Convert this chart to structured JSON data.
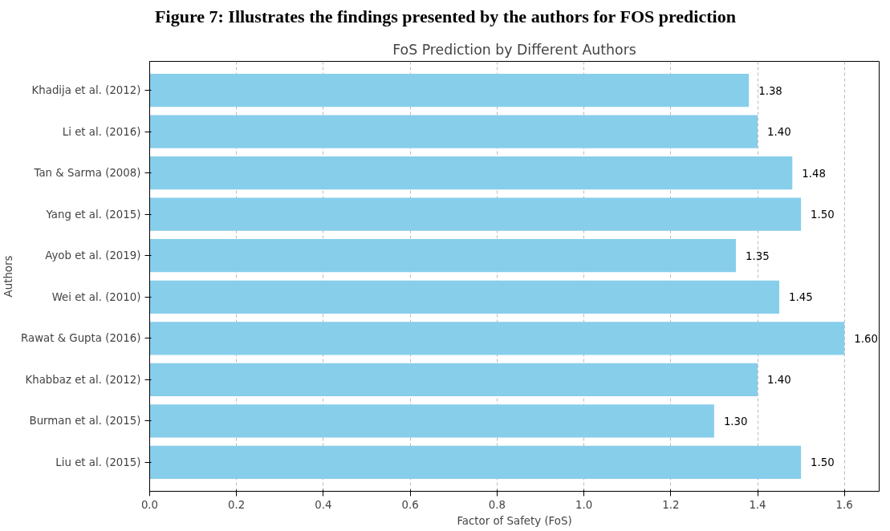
{
  "chart_data": {
    "type": "bar",
    "orientation": "horizontal",
    "title": "FoS Prediction by Different Authors",
    "annotations": [
      "Figure 7: Illustrates the findings presented by the authors for FOS prediction"
    ],
    "xlabel": "Factor of Safety (FoS)",
    "ylabel": "Authors",
    "categories": [
      "Khadija et al. (2012)",
      "Li et al. (2016)",
      "Tan & Sarma (2008)",
      "Yang et al. (2015)",
      "Ayob et al. (2019)",
      "Wei et al. (2010)",
      "Rawat & Gupta (2016)",
      "Khabbaz et al. (2012)",
      "Burman et al. (2015)",
      "Liu et al. (2015)"
    ],
    "values": [
      1.38,
      1.4,
      1.48,
      1.5,
      1.35,
      1.45,
      1.6,
      1.4,
      1.3,
      1.5
    ],
    "value_labels": [
      "1.38",
      "1.40",
      "1.48",
      "1.50",
      "1.35",
      "1.45",
      "1.60",
      "1.40",
      "1.30",
      "1.50"
    ],
    "color": "#87ceeb",
    "xlim": [
      0,
      1.68
    ],
    "xticks": [
      {
        "value": 0,
        "label": "0.0"
      },
      0.2,
      0.4,
      0.6,
      0.8,
      {
        "value": 1,
        "label": "1.0"
      },
      1.2,
      1.4,
      1.6
    ],
    "grid": "x"
  }
}
